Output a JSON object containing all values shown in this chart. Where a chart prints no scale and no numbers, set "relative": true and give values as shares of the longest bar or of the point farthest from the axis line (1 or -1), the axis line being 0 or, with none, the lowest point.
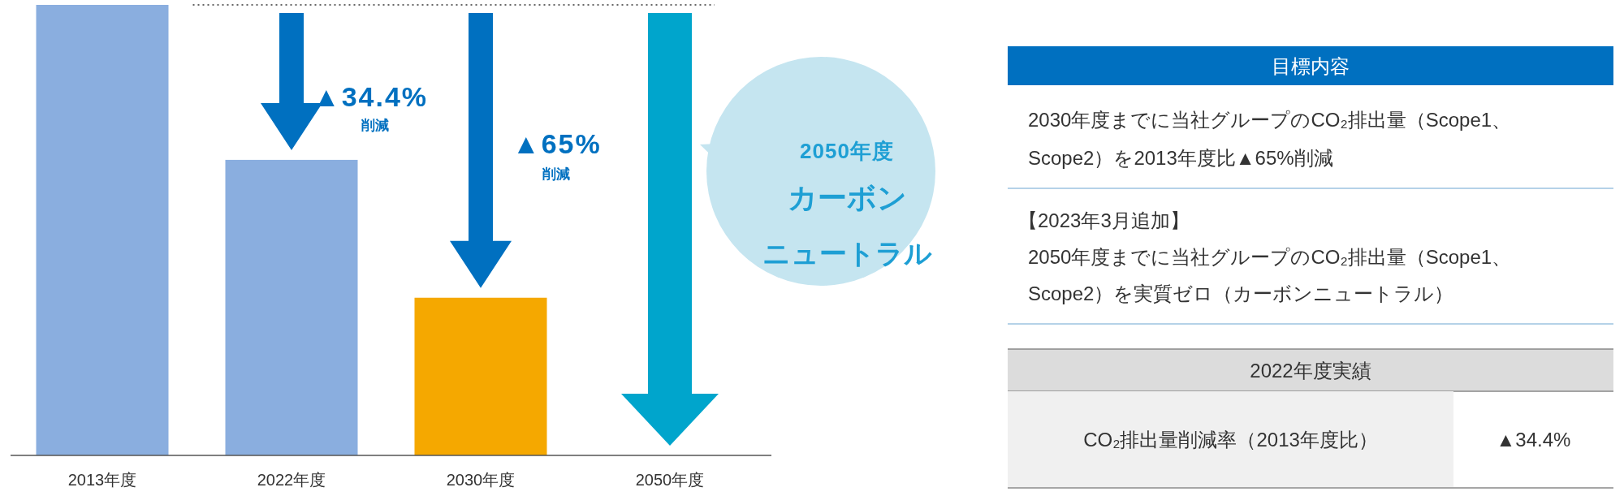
{
  "chart_data": [
    {
      "type": "bar",
      "relative": true,
      "categories": [
        "2013年度",
        "2022年度",
        "2030年度",
        "2050年度"
      ],
      "values": [
        1,
        0.656,
        0.35,
        0
      ],
      "colors": [
        "#8aaedf",
        "#8aaedf",
        "#f5a800",
        "#8aaedf"
      ],
      "ref_lines": [
        {
          "axis": "y",
          "value": 1,
          "line_style": "dotted",
          "color": "#666666"
        }
      ],
      "annotations": [
        "▲34.4%",
        "削減",
        "▲65%",
        "削減",
        "2050年度",
        "カーボン",
        "ニュートラル"
      ]
    },
    {
      "type": "other",
      "annotations": [
        "目標内容",
        "2030年度までに当社グループのCO₂排出量（Scope1、",
        "Scope2）を2013年度比▲65%削減",
        "【2023年3月追加】",
        "2050年度までに当社グループのCO₂排出量（Scope1、",
        "Scope2）を実質ゼロ（カーボンニュートラル）",
        "2022年度実績",
        "CO₂排出量削減率（2013年度比）",
        "▲34.4%"
      ]
    }
  ]
}
